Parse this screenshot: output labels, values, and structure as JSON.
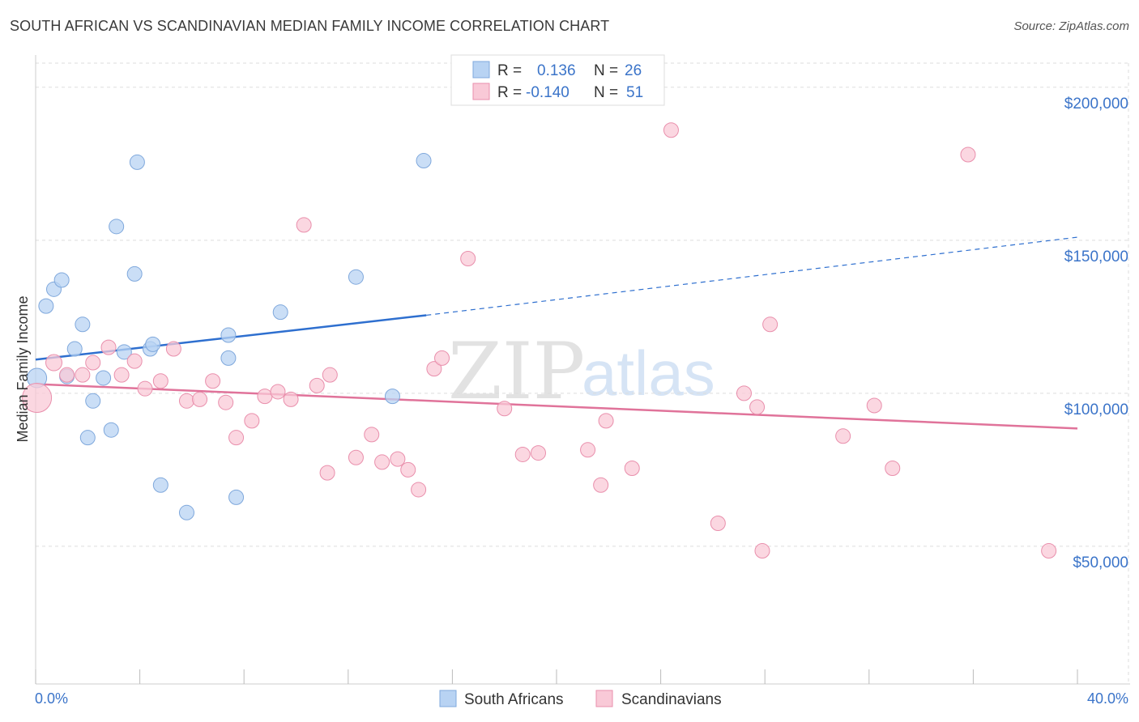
{
  "title": "SOUTH AFRICAN VS SCANDINAVIAN MEDIAN FAMILY INCOME CORRELATION CHART",
  "source": "Source: ZipAtlas.com",
  "watermark": {
    "zip": "ZIP",
    "atlas": "atlas"
  },
  "colors": {
    "blue_fill": "#b8d3f3",
    "blue_stroke": "#7fa8dc",
    "blue_line": "#2e6fcf",
    "pink_fill": "#f9c9d7",
    "pink_stroke": "#e98fac",
    "pink_line": "#e0739a",
    "accent_text": "#3b74c9",
    "grid": "#dddddd"
  },
  "legend": {
    "rows": [
      {
        "r_label": "R =",
        "r_value": "0.136",
        "n_label": "N =",
        "n_value": "26",
        "color": "blue"
      },
      {
        "r_label": "R =",
        "r_value": "-0.140",
        "n_label": "N =",
        "n_value": "51",
        "color": "pink"
      }
    ]
  },
  "bottom_legend": [
    {
      "label": "South Africans",
      "color": "blue"
    },
    {
      "label": "Scandinavians",
      "color": "pink"
    }
  ],
  "chart_data": {
    "type": "scatter",
    "title": "SOUTH AFRICAN VS SCANDINAVIAN MEDIAN FAMILY INCOME CORRELATION CHART",
    "xlabel": "",
    "ylabel": "Median Family Income",
    "xlim": [
      0,
      40
    ],
    "ylim": [
      5000,
      210000
    ],
    "x_tick_labels": [
      "0.0%",
      "40.0%"
    ],
    "y_ticks": [
      50000,
      100000,
      150000,
      200000
    ],
    "y_tick_labels": [
      "$50,000",
      "$100,000",
      "$150,000",
      "$200,000"
    ],
    "grid": true,
    "series": [
      {
        "name": "South Africans",
        "color": "blue",
        "r": 0.136,
        "n": 26,
        "points": [
          [
            0.05,
            105000,
            12
          ],
          [
            0.4,
            128500,
            9
          ],
          [
            0.7,
            134000,
            9
          ],
          [
            1.0,
            137000,
            9
          ],
          [
            1.2,
            105500,
            9
          ],
          [
            1.5,
            114500,
            9
          ],
          [
            1.8,
            122500,
            9
          ],
          [
            2.0,
            85500,
            9
          ],
          [
            2.2,
            97500,
            9
          ],
          [
            2.6,
            105000,
            9
          ],
          [
            2.9,
            88000,
            9
          ],
          [
            3.1,
            154500,
            9
          ],
          [
            3.4,
            113500,
            9
          ],
          [
            3.8,
            139000,
            9
          ],
          [
            3.9,
            175500,
            9
          ],
          [
            4.4,
            114500,
            9
          ],
          [
            4.5,
            116000,
            9
          ],
          [
            4.8,
            70000,
            9
          ],
          [
            5.8,
            61000,
            9
          ],
          [
            7.4,
            119000,
            9
          ],
          [
            7.4,
            111500,
            9
          ],
          [
            7.7,
            66000,
            9
          ],
          [
            9.4,
            126500,
            9
          ],
          [
            12.3,
            138000,
            9
          ],
          [
            13.7,
            99000,
            9
          ],
          [
            14.9,
            176000,
            9
          ]
        ]
      },
      {
        "name": "Scandinavians",
        "color": "pink",
        "r": -0.14,
        "n": 51,
        "points": [
          [
            0.05,
            98500,
            18
          ],
          [
            0.7,
            110000,
            10
          ],
          [
            1.2,
            106000,
            9
          ],
          [
            1.8,
            106000,
            9
          ],
          [
            2.2,
            110000,
            9
          ],
          [
            2.8,
            115000,
            9
          ],
          [
            3.3,
            106000,
            9
          ],
          [
            3.8,
            110500,
            9
          ],
          [
            4.2,
            101500,
            9
          ],
          [
            4.8,
            104000,
            9
          ],
          [
            5.3,
            114500,
            9
          ],
          [
            5.8,
            97500,
            9
          ],
          [
            6.3,
            98000,
            9
          ],
          [
            6.8,
            104000,
            9
          ],
          [
            7.3,
            97000,
            9
          ],
          [
            7.7,
            85500,
            9
          ],
          [
            8.3,
            91000,
            9
          ],
          [
            8.8,
            99000,
            9
          ],
          [
            9.3,
            100500,
            9
          ],
          [
            9.8,
            98000,
            9
          ],
          [
            10.3,
            155000,
            9
          ],
          [
            10.8,
            102500,
            9
          ],
          [
            11.2,
            74000,
            9
          ],
          [
            11.3,
            106000,
            9
          ],
          [
            12.3,
            79000,
            9
          ],
          [
            12.9,
            86500,
            9
          ],
          [
            13.3,
            77500,
            9
          ],
          [
            13.9,
            78500,
            9
          ],
          [
            14.3,
            75000,
            9
          ],
          [
            14.7,
            68500,
            9
          ],
          [
            15.3,
            108000,
            9
          ],
          [
            15.6,
            111500,
            9
          ],
          [
            16.6,
            144000,
            9
          ],
          [
            18.0,
            95000,
            9
          ],
          [
            18.7,
            80000,
            9
          ],
          [
            19.3,
            80500,
            9
          ],
          [
            21.2,
            81500,
            9
          ],
          [
            21.7,
            70000,
            9
          ],
          [
            21.9,
            91000,
            9
          ],
          [
            22.9,
            75500,
            9
          ],
          [
            24.4,
            186000,
            9
          ],
          [
            26.2,
            57500,
            9
          ],
          [
            27.2,
            100000,
            9
          ],
          [
            27.7,
            95500,
            9
          ],
          [
            27.9,
            48500,
            9
          ],
          [
            28.2,
            122500,
            9
          ],
          [
            31.0,
            86000,
            9
          ],
          [
            32.2,
            96000,
            9
          ],
          [
            32.9,
            75500,
            9
          ],
          [
            35.8,
            178000,
            9
          ],
          [
            38.9,
            48500,
            9
          ]
        ]
      }
    ],
    "trend_lines": [
      {
        "series": "South Africans",
        "x1": 0,
        "y1": 111000,
        "x2": 15.0,
        "y2": 125500,
        "dashed_to_x": 40,
        "dashed_to_y": 151000
      },
      {
        "series": "Scandinavians",
        "x1": 0,
        "y1": 103000,
        "x2": 40,
        "y2": 88500
      }
    ]
  }
}
